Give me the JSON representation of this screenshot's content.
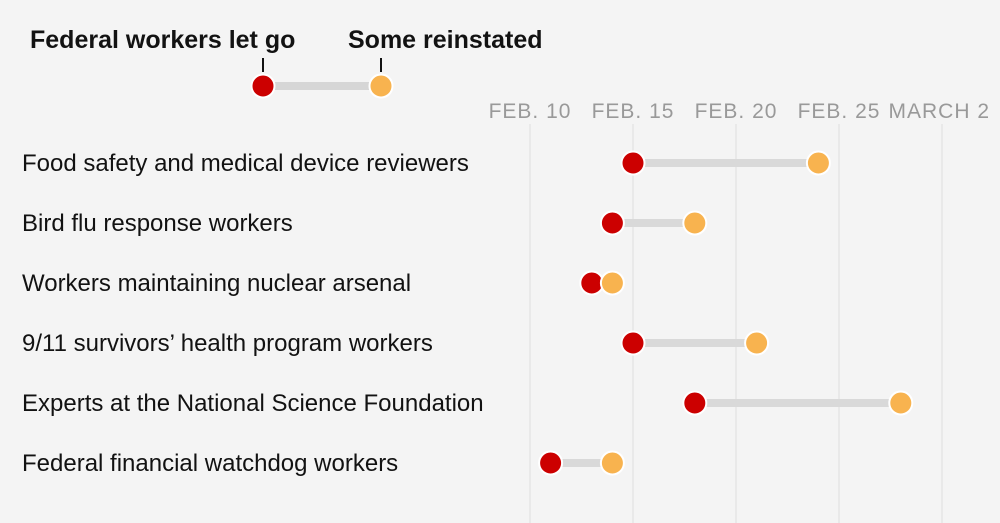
{
  "chart_data": {
    "type": "dumbbell",
    "legend": {
      "start_label": "Federal workers let go",
      "end_label": "Some reinstated",
      "start_color": "#cc0000",
      "end_color": "#f8b34f"
    },
    "x_ticks": [
      "FEB. 10",
      "FEB. 15",
      "FEB. 20",
      "FEB. 25",
      "MARCH 2"
    ],
    "x_tick_days": [
      10,
      15,
      20,
      25,
      30
    ],
    "xlim_days": [
      10,
      31
    ],
    "rows": [
      {
        "label": "Food safety and medical device reviewers",
        "start_day": 15,
        "end_day": 24
      },
      {
        "label": "Bird flu response workers",
        "start_day": 14,
        "end_day": 18
      },
      {
        "label": "Workers maintaining nuclear arsenal",
        "start_day": 13,
        "end_day": 14
      },
      {
        "label": "9/11 survivors’ health program workers",
        "start_day": 15,
        "end_day": 21
      },
      {
        "label": "Experts at the National Science Foundation",
        "start_day": 18,
        "end_day": 28
      },
      {
        "label": "Federal financial watchdog workers",
        "start_day": 11,
        "end_day": 14
      }
    ],
    "grid": true
  }
}
